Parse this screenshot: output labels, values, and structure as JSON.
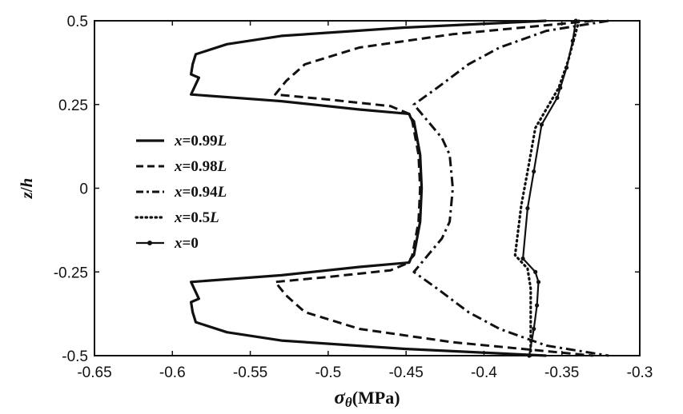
{
  "chart_data": {
    "type": "line",
    "xlabel_symbol": "σ",
    "xlabel_sub": "θ",
    "xlabel_unit": "(MPa)",
    "ylabel_main": "z",
    "ylabel_sep": "/",
    "ylabel_den": "h",
    "xlim": [
      -0.65,
      -0.3
    ],
    "ylim": [
      -0.5,
      0.5
    ],
    "x_ticks": [
      -0.65,
      -0.6,
      -0.55,
      -0.5,
      -0.45,
      -0.4,
      -0.35,
      -0.3
    ],
    "x_tick_labels": [
      "-0.65",
      "-0.6",
      "-0.55",
      "-0.5",
      "-0.45",
      "-0.4",
      "-0.35",
      "-0.3"
    ],
    "y_ticks": [
      -0.5,
      -0.25,
      0,
      0.25,
      0.5
    ],
    "y_tick_labels": [
      "-0.5",
      "-0.25",
      "0",
      "0.25",
      "0.5"
    ],
    "grid": false,
    "legend_position": "left",
    "series": [
      {
        "name": "x=0.99L",
        "legend_text": {
          "pre": "x",
          "mid": "=0.99",
          "post": "L"
        },
        "style": "solid",
        "width": 3.2,
        "points": [
          [
            -0.36,
            0.5
          ],
          [
            -0.45,
            0.48
          ],
          [
            -0.53,
            0.455
          ],
          [
            -0.565,
            0.43
          ],
          [
            -0.585,
            0.4
          ],
          [
            -0.587,
            0.37
          ],
          [
            -0.588,
            0.34
          ],
          [
            -0.583,
            0.33
          ],
          [
            -0.586,
            0.3
          ],
          [
            -0.588,
            0.28
          ],
          [
            -0.53,
            0.26
          ],
          [
            -0.48,
            0.235
          ],
          [
            -0.448,
            0.222
          ],
          [
            -0.447,
            0.21
          ],
          [
            -0.445,
            0.2
          ],
          [
            -0.443,
            0.15
          ],
          [
            -0.441,
            0.1
          ],
          [
            -0.44,
            0.0
          ],
          [
            -0.441,
            -0.1
          ],
          [
            -0.443,
            -0.15
          ],
          [
            -0.445,
            -0.2
          ],
          [
            -0.447,
            -0.21
          ],
          [
            -0.448,
            -0.222
          ],
          [
            -0.48,
            -0.235
          ],
          [
            -0.53,
            -0.26
          ],
          [
            -0.588,
            -0.28
          ],
          [
            -0.586,
            -0.3
          ],
          [
            -0.583,
            -0.33
          ],
          [
            -0.588,
            -0.34
          ],
          [
            -0.587,
            -0.37
          ],
          [
            -0.585,
            -0.4
          ],
          [
            -0.565,
            -0.43
          ],
          [
            -0.53,
            -0.455
          ],
          [
            -0.45,
            -0.48
          ],
          [
            -0.36,
            -0.5
          ]
        ]
      },
      {
        "name": "x=0.98L",
        "legend_text": {
          "pre": "x",
          "mid": "=0.98",
          "post": "L"
        },
        "style": "dashed",
        "width": 3,
        "points": [
          [
            -0.33,
            0.5
          ],
          [
            -0.42,
            0.46
          ],
          [
            -0.48,
            0.42
          ],
          [
            -0.515,
            0.37
          ],
          [
            -0.527,
            0.32
          ],
          [
            -0.534,
            0.28
          ],
          [
            -0.5,
            0.265
          ],
          [
            -0.46,
            0.245
          ],
          [
            -0.448,
            0.222
          ],
          [
            -0.446,
            0.2
          ],
          [
            -0.444,
            0.15
          ],
          [
            -0.442,
            0.1
          ],
          [
            -0.441,
            0.0
          ],
          [
            -0.442,
            -0.1
          ],
          [
            -0.444,
            -0.15
          ],
          [
            -0.446,
            -0.2
          ],
          [
            -0.448,
            -0.222
          ],
          [
            -0.46,
            -0.245
          ],
          [
            -0.5,
            -0.265
          ],
          [
            -0.534,
            -0.28
          ],
          [
            -0.527,
            -0.32
          ],
          [
            -0.515,
            -0.37
          ],
          [
            -0.48,
            -0.42
          ],
          [
            -0.42,
            -0.46
          ],
          [
            -0.33,
            -0.5
          ]
        ]
      },
      {
        "name": "x=0.94L",
        "legend_text": {
          "pre": "x",
          "mid": "=0.94",
          "post": "L"
        },
        "style": "dashdot",
        "width": 3,
        "points": [
          [
            -0.32,
            0.5
          ],
          [
            -0.36,
            0.47
          ],
          [
            -0.39,
            0.42
          ],
          [
            -0.41,
            0.37
          ],
          [
            -0.43,
            0.3
          ],
          [
            -0.445,
            0.25
          ],
          [
            -0.436,
            0.2
          ],
          [
            -0.427,
            0.15
          ],
          [
            -0.422,
            0.1
          ],
          [
            -0.42,
            0.0
          ],
          [
            -0.422,
            -0.1
          ],
          [
            -0.427,
            -0.15
          ],
          [
            -0.436,
            -0.2
          ],
          [
            -0.445,
            -0.25
          ],
          [
            -0.43,
            -0.3
          ],
          [
            -0.41,
            -0.37
          ],
          [
            -0.39,
            -0.42
          ],
          [
            -0.36,
            -0.47
          ],
          [
            -0.32,
            -0.5
          ]
        ]
      },
      {
        "name": "x=0.5L",
        "legend_text": {
          "pre": "x",
          "mid": "=0.5",
          "post": "L"
        },
        "style": "dotted",
        "width": 3.2,
        "points": [
          [
            -0.339,
            0.5
          ],
          [
            -0.342,
            0.45
          ],
          [
            -0.346,
            0.38
          ],
          [
            -0.352,
            0.3
          ],
          [
            -0.357,
            0.26
          ],
          [
            -0.367,
            0.18
          ],
          [
            -0.372,
            0.05
          ],
          [
            -0.376,
            -0.05
          ],
          [
            -0.38,
            -0.2
          ],
          [
            -0.372,
            -0.24
          ],
          [
            -0.37,
            -0.3
          ],
          [
            -0.37,
            -0.4
          ],
          [
            -0.37,
            -0.46
          ],
          [
            -0.37,
            -0.5
          ]
        ]
      },
      {
        "name": "x=0",
        "legend_text": {
          "pre": "x",
          "mid": "=0",
          "post": ""
        },
        "style": "arrow",
        "width": 2.2,
        "points": [
          [
            -0.341,
            0.5
          ],
          [
            -0.343,
            0.44
          ],
          [
            -0.347,
            0.36
          ],
          [
            -0.351,
            0.3
          ],
          [
            -0.353,
            0.27
          ],
          [
            -0.363,
            0.19
          ],
          [
            -0.368,
            0.05
          ],
          [
            -0.372,
            -0.06
          ],
          [
            -0.375,
            -0.21
          ],
          [
            -0.367,
            -0.25
          ],
          [
            -0.365,
            -0.28
          ],
          [
            -0.366,
            -0.35
          ],
          [
            -0.368,
            -0.42
          ],
          [
            -0.371,
            -0.5
          ]
        ]
      }
    ]
  }
}
